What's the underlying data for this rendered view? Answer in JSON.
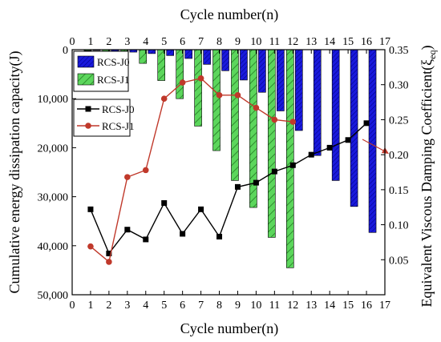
{
  "chart_data": {
    "type": "bar+line",
    "top_xlabel": "Cycle number(n)",
    "bottom_xlabel": "Cycle number(n)",
    "ylabel_left": "Cumulative energy dissipation capacity(J)",
    "ylabel_right_prefix": "Equivalent Viscous Damping Coefficient(ξ",
    "ylabel_right_sub": "eq",
    "ylabel_right_suffix": ")",
    "x_range": [
      0,
      17
    ],
    "x_ticks": [
      0,
      1,
      2,
      3,
      4,
      5,
      6,
      7,
      8,
      9,
      10,
      11,
      12,
      13,
      14,
      15,
      16,
      17
    ],
    "y_left_range": [
      0,
      50000
    ],
    "y_left_inverted": true,
    "y_left_ticks": [
      0,
      10000,
      20000,
      30000,
      40000,
      50000
    ],
    "y_left_tick_labels": [
      "0",
      "10,000",
      "20,000",
      "30,000",
      "40,000",
      "50,000"
    ],
    "y_right_range": [
      0.0,
      0.35
    ],
    "y_right_ticks": [
      0.05,
      0.1,
      0.15,
      0.2,
      0.25,
      0.3,
      0.35
    ],
    "y_right_tick_labels": [
      "0.05",
      "0.10",
      "0.15",
      "0.20",
      "0.25",
      "0.30",
      "0.35"
    ],
    "bar_series": [
      {
        "name": "RCS-J0",
        "color": "#1a1adc",
        "hatch": "dense",
        "x": [
          1,
          2,
          3,
          4,
          5,
          6,
          7,
          8,
          9,
          10,
          11,
          12,
          13,
          14,
          15,
          16
        ],
        "values": [
          150,
          300,
          500,
          800,
          1200,
          1800,
          3000,
          4300,
          6200,
          8700,
          12500,
          16500,
          21600,
          26700,
          32000,
          37300
        ]
      },
      {
        "name": "RCS-J1",
        "color": "#5cd65c",
        "hatch": "diagonal",
        "x": [
          1,
          2,
          3,
          4,
          5,
          6,
          7,
          8,
          9,
          10,
          11,
          12
        ],
        "values": [
          200,
          300,
          1500,
          2800,
          6300,
          10000,
          15600,
          20600,
          26700,
          32200,
          38300,
          44500
        ]
      }
    ],
    "line_series": [
      {
        "name": "RCS-J0",
        "color": "#000000",
        "marker": "square",
        "x": [
          1,
          2,
          3,
          4,
          5,
          6,
          7,
          8,
          9,
          10,
          11,
          12,
          13,
          14,
          15,
          16
        ],
        "values": [
          0.122,
          0.059,
          0.093,
          0.079,
          0.131,
          0.087,
          0.122,
          0.083,
          0.154,
          0.16,
          0.176,
          0.185,
          0.2,
          0.21,
          0.221,
          0.245
        ]
      },
      {
        "name": "RCS-J1",
        "color": "#c0392b",
        "marker": "circle",
        "x": [
          1,
          2,
          3,
          4,
          5,
          6,
          7,
          8,
          9,
          10,
          11,
          12
        ],
        "values": [
          0.069,
          0.047,
          0.168,
          0.178,
          0.28,
          0.303,
          0.309,
          0.285,
          0.285,
          0.267,
          0.25,
          0.247
        ]
      }
    ],
    "legend_position": "top-left"
  }
}
